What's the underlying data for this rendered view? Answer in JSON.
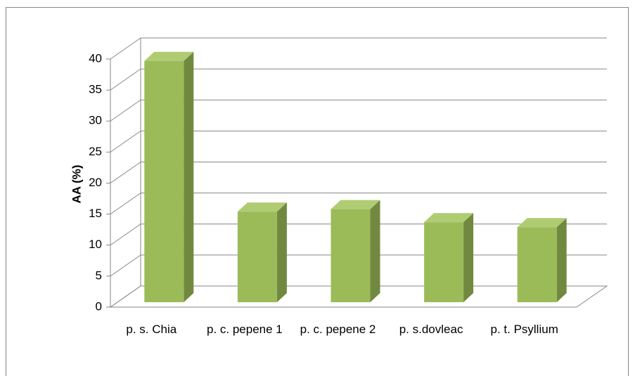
{
  "chart_data": {
    "type": "bar3d",
    "y_label": "AA (%)",
    "categories": [
      "p. s. Chia",
      "p. c. pepene 1",
      "p. c. pepene 2",
      "p. s.dovleac",
      "p. t. Psyllium"
    ],
    "values": [
      38.9,
      14.6,
      15.0,
      12.9,
      12.1
    ],
    "color": "#9bbb59",
    "side_color": "#71893f",
    "top_color": "#afcc72",
    "ylim": [
      0,
      40
    ],
    "yticks": [
      0,
      5,
      10,
      15,
      20,
      25,
      30,
      35,
      40
    ],
    "grid": true
  }
}
